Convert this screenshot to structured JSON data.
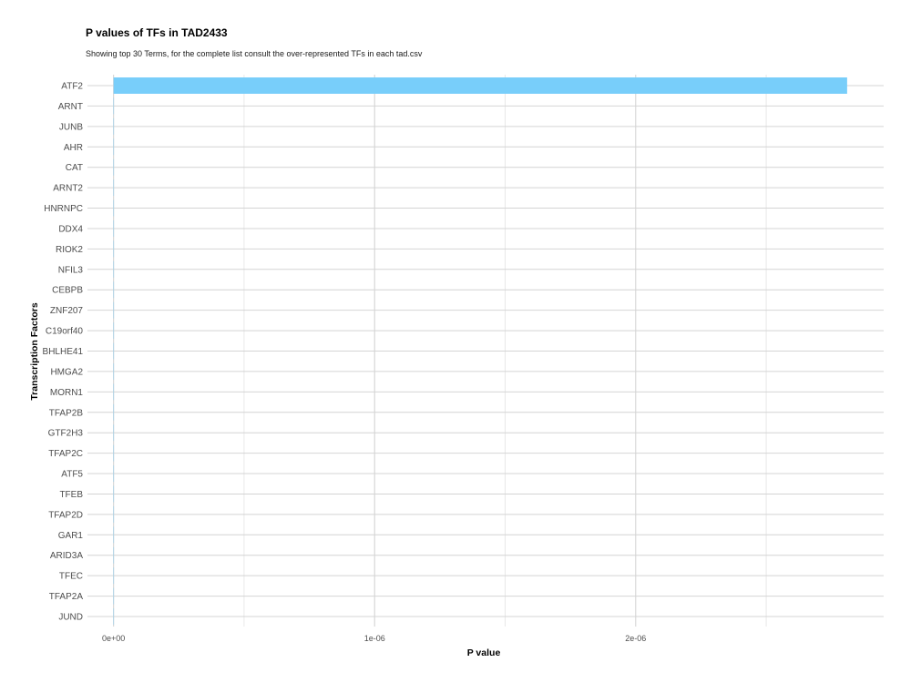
{
  "chart_data": {
    "type": "bar",
    "orientation": "horizontal",
    "title": "P values of TFs in TAD2433",
    "subtitle": "Showing top 30 Terms, for the complete list consult the over-represented TFs in each tad.csv",
    "xlabel": "P value",
    "ylabel": "Transcription Factors",
    "categories": [
      "ATF2",
      "ARNT",
      "JUNB",
      "AHR",
      "CAT",
      "ARNT2",
      "HNRNPC",
      "DDX4",
      "RIOK2",
      "NFIL3",
      "CEBPB",
      "ZNF207",
      "C19orf40",
      "BHLHE41",
      "HMGA2",
      "MORN1",
      "TFAP2B",
      "GTF2H3",
      "TFAP2C",
      "ATF5",
      "TFEB",
      "TFAP2D",
      "GAR1",
      "ARID3A",
      "TFEC",
      "TFAP2A",
      "JUND"
    ],
    "values": [
      2.81e-06,
      1e-09,
      1e-09,
      1e-09,
      1e-09,
      1e-09,
      1e-09,
      1e-09,
      1e-09,
      1e-09,
      1e-09,
      1e-09,
      1e-09,
      1e-09,
      1e-09,
      1e-09,
      1e-09,
      1e-09,
      1e-09,
      1e-09,
      1e-09,
      1e-09,
      1e-09,
      1e-09,
      1e-09,
      1e-09,
      1e-09
    ],
    "x_ticks": [
      0,
      1e-06,
      2e-06
    ],
    "x_tick_labels": [
      "0e+00",
      "1e-06",
      "2e-06"
    ],
    "xlim": [
      -1e-07,
      2.95e-06
    ],
    "bar_color": "#78cefa",
    "grid": true,
    "legend": "none"
  }
}
